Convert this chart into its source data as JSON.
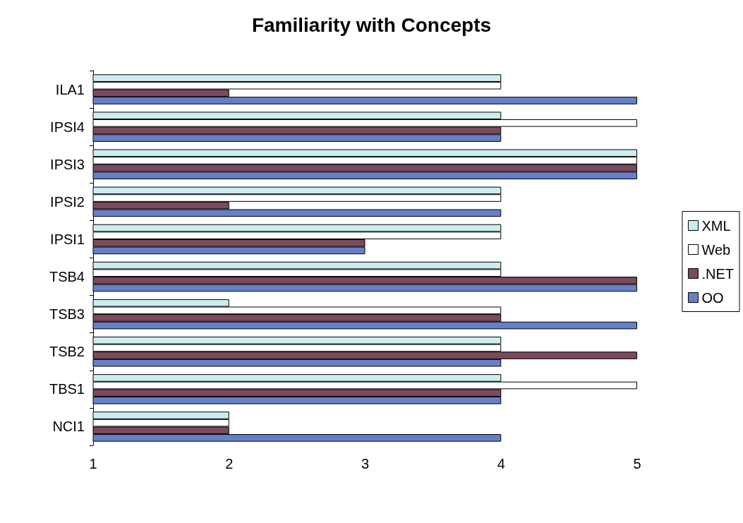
{
  "chart_data": {
    "type": "bar",
    "orientation": "horizontal",
    "title": "Familiarity with Concepts",
    "categories": [
      "ILA1",
      "IPSI4",
      "IPSI3",
      "IPSI2",
      "IPSI1",
      "TSB4",
      "TSB3",
      "TSB2",
      "TBS1",
      "NCI1"
    ],
    "series": [
      {
        "name": "XML",
        "color": "#ccecf2",
        "values": [
          4,
          4,
          5,
          4,
          4,
          4,
          2,
          4,
          4,
          2
        ]
      },
      {
        "name": "Web",
        "color": "#ffffff",
        "values": [
          4,
          5,
          5,
          4,
          4,
          4,
          4,
          4,
          5,
          2
        ]
      },
      {
        "name": ".NET",
        "color": "#7b4a5c",
        "values": [
          2,
          4,
          5,
          2,
          3,
          5,
          4,
          5,
          4,
          2
        ]
      },
      {
        "name": "OO",
        "color": "#6680c8",
        "values": [
          5,
          4,
          5,
          4,
          3,
          5,
          5,
          4,
          4,
          4
        ]
      }
    ],
    "xlim": [
      1,
      5
    ],
    "xticks": [
      1,
      2,
      3,
      4,
      5
    ],
    "grid": false,
    "legend": "right"
  }
}
